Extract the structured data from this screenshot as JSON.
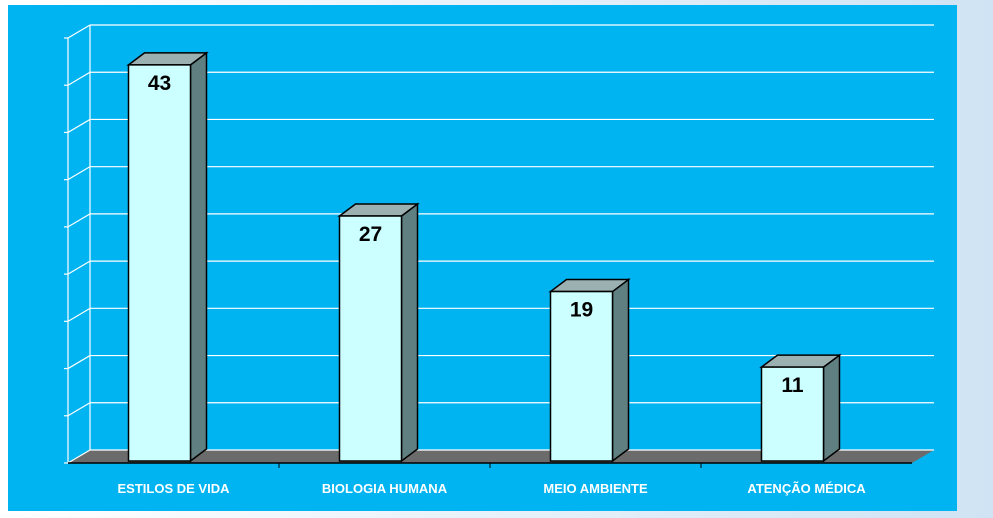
{
  "colors": {
    "plot_background": "#00B4F2",
    "gridline": "#FFFFFF",
    "bar_front": "#CCFFFF",
    "bar_side": "#5F7F80",
    "bar_top": "#9BB0B1",
    "floor": "#6B6B6B",
    "category_label": "#FFFFFF",
    "value_label": "#000000"
  },
  "chart_data": {
    "type": "bar",
    "style": "3d-column",
    "categories": [
      "ESTILOS DE VIDA",
      "BIOLOGIA HUMANA",
      "MEIO AMBIENTE",
      "ATENÇÃO MÉDICA"
    ],
    "values": [
      43,
      27,
      19,
      11
    ],
    "data_labels": [
      "43",
      "27",
      "19",
      "11"
    ],
    "title": "",
    "xlabel": "",
    "ylabel": "",
    "ylim": [
      0,
      45
    ],
    "y_tick_step": 5,
    "grid": true,
    "legend": "none"
  }
}
